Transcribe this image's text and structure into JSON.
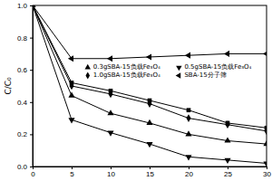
{
  "chart_data": {
    "type": "line",
    "y_label": "C/C₀",
    "x": [
      0,
      5,
      10,
      15,
      20,
      25,
      30
    ],
    "xlim": [
      0,
      30
    ],
    "xticks": [
      0,
      5,
      10,
      15,
      20,
      25,
      30
    ],
    "ylim": [
      0,
      1.0
    ],
    "yticks": [
      {
        "value": 0,
        "label": "0.0"
      },
      {
        "value": 0.2,
        "label": "0.2"
      },
      {
        "value": 0.4,
        "label": "0.4"
      },
      {
        "value": 0.6,
        "label": "0.6"
      },
      {
        "value": 0.8,
        "label": "0.8"
      },
      {
        "value": 1.0,
        "label": "1.0"
      }
    ],
    "series": [
      {
        "color": "#000000",
        "marker": "square",
        "values": [
          1.0,
          0.52,
          0.47,
          0.41,
          0.35,
          0.27,
          0.24
        ]
      },
      {
        "name": "0.3gSBA-15负载Fe₃O₄",
        "color": "#000000",
        "marker": "triangle-up",
        "values": [
          1.0,
          0.44,
          0.33,
          0.27,
          0.2,
          0.16,
          0.14
        ]
      },
      {
        "name": "0.5gSBA-15负载Fe₃O₄",
        "color": "#000000",
        "marker": "triangle-down",
        "values": [
          1.0,
          0.29,
          0.21,
          0.14,
          0.06,
          0.04,
          0.02
        ]
      },
      {
        "name": "1.0gSBA-15负载Fe₃O₄",
        "color": "#000000",
        "marker": "diamond",
        "values": [
          1.0,
          0.5,
          0.45,
          0.39,
          0.3,
          0.26,
          0.22
        ]
      },
      {
        "name": "SBA-15分子筛",
        "color": "#000000",
        "marker": "triangle-left",
        "values": [
          1.0,
          0.67,
          0.67,
          0.68,
          0.69,
          0.7,
          0.7
        ]
      }
    ]
  }
}
